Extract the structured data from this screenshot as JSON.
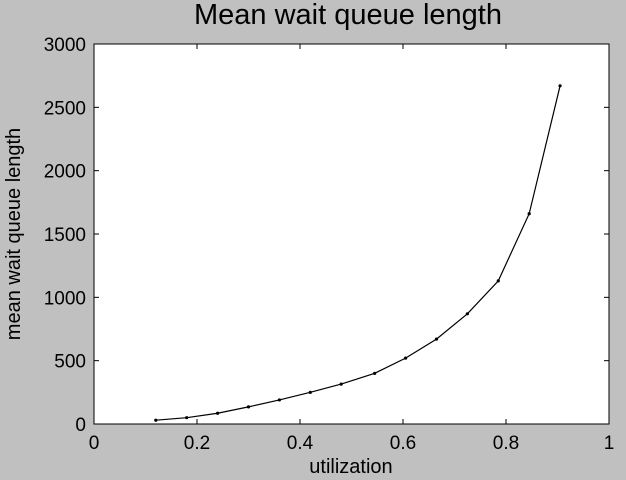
{
  "colors": {
    "figure_background": "#c0c0c0",
    "plot_background": "#ffffff",
    "line": "#000000"
  },
  "chart_data": {
    "type": "line",
    "title": "Mean wait queue length",
    "xlabel": "utilization",
    "ylabel": "mean wait queue length",
    "xlim": [
      0,
      1
    ],
    "ylim": [
      0,
      3000
    ],
    "xticks": [
      0,
      0.2,
      0.4,
      0.6,
      0.8,
      1
    ],
    "xtick_labels": [
      "0",
      "0.2",
      "0.4",
      "0.6",
      "0.8",
      "1"
    ],
    "yticks": [
      0,
      500,
      1000,
      1500,
      2000,
      2500,
      3000
    ],
    "ytick_labels": [
      "0",
      "500",
      "1000",
      "1500",
      "2000",
      "2500",
      "3000"
    ],
    "grid": false,
    "legend": "none",
    "marker": "dot",
    "series": [
      {
        "x": [
          0.12,
          0.18,
          0.24,
          0.3,
          0.36,
          0.42,
          0.48,
          0.545,
          0.605,
          0.665,
          0.725,
          0.785,
          0.845,
          0.905
        ],
        "y": [
          30,
          50,
          85,
          135,
          190,
          250,
          315,
          400,
          520,
          670,
          870,
          1130,
          1660,
          2670
        ]
      }
    ]
  }
}
